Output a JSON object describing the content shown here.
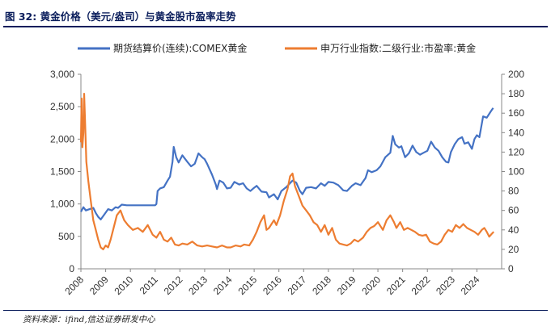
{
  "title": "图 32:  黄金价格（美元/盎司）与黄金股市盈率走势",
  "source": "资料来源：ifind,信达证券研发中心",
  "chart_data": {
    "type": "line",
    "x_ticks": [
      "2008",
      "2009",
      "2010",
      "2011",
      "2012",
      "2013",
      "2014",
      "2015",
      "2016",
      "2017",
      "2018",
      "2019",
      "2020",
      "2021",
      "2022",
      "2023",
      "2024"
    ],
    "x_range": [
      2008.0,
      2025.0
    ],
    "y_left": {
      "min": 0,
      "max": 3000,
      "ticks": [
        "0",
        "500",
        "1,000",
        "1,500",
        "2,000",
        "2,500",
        "3,000"
      ]
    },
    "y_right": {
      "min": 0,
      "max": 200,
      "ticks": [
        "0",
        "20",
        "40",
        "60",
        "80",
        "100",
        "120",
        "140",
        "160",
        "180",
        "200"
      ]
    },
    "series": [
      {
        "name": "期货结算价(连续):COMEX黄金",
        "axis": "left",
        "color": "#4472c4",
        "points": [
          [
            2008.0,
            880
          ],
          [
            2008.1,
            950
          ],
          [
            2008.2,
            900
          ],
          [
            2008.35,
            920
          ],
          [
            2008.5,
            940
          ],
          [
            2008.6,
            860
          ],
          [
            2008.7,
            800
          ],
          [
            2008.8,
            760
          ],
          [
            2008.95,
            840
          ],
          [
            2009.1,
            920
          ],
          [
            2009.25,
            900
          ],
          [
            2009.4,
            950
          ],
          [
            2009.5,
            940
          ],
          [
            2009.65,
            990
          ],
          [
            2009.85,
            980
          ],
          [
            2010.0,
            980
          ],
          [
            2010.25,
            980
          ],
          [
            2010.5,
            980
          ],
          [
            2010.75,
            980
          ],
          [
            2011.0,
            980
          ],
          [
            2011.05,
            1000
          ],
          [
            2011.1,
            1200
          ],
          [
            2011.2,
            1240
          ],
          [
            2011.35,
            1260
          ],
          [
            2011.5,
            1360
          ],
          [
            2011.6,
            1420
          ],
          [
            2011.7,
            1650
          ],
          [
            2011.75,
            1880
          ],
          [
            2011.85,
            1720
          ],
          [
            2011.95,
            1640
          ],
          [
            2012.1,
            1750
          ],
          [
            2012.3,
            1650
          ],
          [
            2012.45,
            1580
          ],
          [
            2012.6,
            1620
          ],
          [
            2012.75,
            1780
          ],
          [
            2012.9,
            1720
          ],
          [
            2013.0,
            1690
          ],
          [
            2013.1,
            1620
          ],
          [
            2013.3,
            1450
          ],
          [
            2013.45,
            1300
          ],
          [
            2013.5,
            1230
          ],
          [
            2013.6,
            1360
          ],
          [
            2013.75,
            1330
          ],
          [
            2013.9,
            1240
          ],
          [
            2014.05,
            1250
          ],
          [
            2014.2,
            1340
          ],
          [
            2014.4,
            1300
          ],
          [
            2014.55,
            1320
          ],
          [
            2014.7,
            1240
          ],
          [
            2014.85,
            1200
          ],
          [
            2015.0,
            1250
          ],
          [
            2015.1,
            1280
          ],
          [
            2015.3,
            1190
          ],
          [
            2015.5,
            1180
          ],
          [
            2015.6,
            1100
          ],
          [
            2015.8,
            1150
          ],
          [
            2015.95,
            1070
          ],
          [
            2016.1,
            1200
          ],
          [
            2016.3,
            1260
          ],
          [
            2016.55,
            1360
          ],
          [
            2016.7,
            1330
          ],
          [
            2016.85,
            1200
          ],
          [
            2016.95,
            1150
          ],
          [
            2017.1,
            1250
          ],
          [
            2017.3,
            1260
          ],
          [
            2017.5,
            1240
          ],
          [
            2017.7,
            1320
          ],
          [
            2017.85,
            1280
          ],
          [
            2018.0,
            1340
          ],
          [
            2018.2,
            1330
          ],
          [
            2018.4,
            1290
          ],
          [
            2018.6,
            1210
          ],
          [
            2018.75,
            1200
          ],
          [
            2018.95,
            1280
          ],
          [
            2019.1,
            1320
          ],
          [
            2019.3,
            1290
          ],
          [
            2019.5,
            1400
          ],
          [
            2019.6,
            1520
          ],
          [
            2019.75,
            1490
          ],
          [
            2019.95,
            1520
          ],
          [
            2020.1,
            1580
          ],
          [
            2020.2,
            1650
          ],
          [
            2020.3,
            1720
          ],
          [
            2020.5,
            1790
          ],
          [
            2020.6,
            2050
          ],
          [
            2020.7,
            1920
          ],
          [
            2020.85,
            1870
          ],
          [
            2020.95,
            1890
          ],
          [
            2021.1,
            1720
          ],
          [
            2021.25,
            1780
          ],
          [
            2021.4,
            1900
          ],
          [
            2021.55,
            1800
          ],
          [
            2021.7,
            1760
          ],
          [
            2021.85,
            1790
          ],
          [
            2022.0,
            1820
          ],
          [
            2022.15,
            1960
          ],
          [
            2022.3,
            1870
          ],
          [
            2022.45,
            1820
          ],
          [
            2022.6,
            1720
          ],
          [
            2022.75,
            1650
          ],
          [
            2022.85,
            1640
          ],
          [
            2022.95,
            1800
          ],
          [
            2023.1,
            1920
          ],
          [
            2023.25,
            2000
          ],
          [
            2023.4,
            2030
          ],
          [
            2023.5,
            1930
          ],
          [
            2023.65,
            1950
          ],
          [
            2023.8,
            1850
          ],
          [
            2023.9,
            2000
          ],
          [
            2024.0,
            2060
          ],
          [
            2024.1,
            2030
          ],
          [
            2024.25,
            2350
          ],
          [
            2024.4,
            2330
          ],
          [
            2024.55,
            2420
          ],
          [
            2024.62,
            2460
          ],
          [
            2024.66,
            2480
          ]
        ]
      },
      {
        "name": "申万行业指数:二级行业:市盈率:黄金",
        "axis": "right",
        "color": "#ed7d31",
        "points": [
          [
            2008.0,
            130
          ],
          [
            2008.03,
            175
          ],
          [
            2008.06,
            125
          ],
          [
            2008.1,
            140
          ],
          [
            2008.13,
            180
          ],
          [
            2008.17,
            150
          ],
          [
            2008.22,
            110
          ],
          [
            2008.3,
            90
          ],
          [
            2008.4,
            70
          ],
          [
            2008.5,
            50
          ],
          [
            2008.6,
            40
          ],
          [
            2008.7,
            30
          ],
          [
            2008.8,
            22
          ],
          [
            2008.9,
            20
          ],
          [
            2009.0,
            24
          ],
          [
            2009.1,
            22
          ],
          [
            2009.2,
            30
          ],
          [
            2009.3,
            40
          ],
          [
            2009.45,
            55
          ],
          [
            2009.6,
            60
          ],
          [
            2009.75,
            50
          ],
          [
            2009.9,
            45
          ],
          [
            2010.1,
            40
          ],
          [
            2010.3,
            42
          ],
          [
            2010.5,
            38
          ],
          [
            2010.7,
            45
          ],
          [
            2010.9,
            35
          ],
          [
            2011.05,
            32
          ],
          [
            2011.2,
            38
          ],
          [
            2011.35,
            30
          ],
          [
            2011.5,
            28
          ],
          [
            2011.65,
            32
          ],
          [
            2011.8,
            25
          ],
          [
            2011.95,
            24
          ],
          [
            2012.1,
            26
          ],
          [
            2012.3,
            25
          ],
          [
            2012.5,
            28
          ],
          [
            2012.7,
            24
          ],
          [
            2012.9,
            23
          ],
          [
            2013.1,
            24
          ],
          [
            2013.3,
            23
          ],
          [
            2013.5,
            22
          ],
          [
            2013.7,
            24
          ],
          [
            2013.9,
            22
          ],
          [
            2014.05,
            22
          ],
          [
            2014.25,
            24
          ],
          [
            2014.45,
            23
          ],
          [
            2014.6,
            25
          ],
          [
            2014.8,
            24
          ],
          [
            2014.95,
            30
          ],
          [
            2015.1,
            38
          ],
          [
            2015.25,
            48
          ],
          [
            2015.4,
            55
          ],
          [
            2015.5,
            40
          ],
          [
            2015.6,
            42
          ],
          [
            2015.8,
            50
          ],
          [
            2015.9,
            45
          ],
          [
            2016.05,
            55
          ],
          [
            2016.2,
            70
          ],
          [
            2016.35,
            82
          ],
          [
            2016.45,
            95
          ],
          [
            2016.55,
            98
          ],
          [
            2016.65,
            85
          ],
          [
            2016.8,
            75
          ],
          [
            2016.95,
            65
          ],
          [
            2017.1,
            60
          ],
          [
            2017.25,
            55
          ],
          [
            2017.4,
            48
          ],
          [
            2017.55,
            45
          ],
          [
            2017.7,
            38
          ],
          [
            2017.85,
            45
          ],
          [
            2018.0,
            35
          ],
          [
            2018.15,
            42
          ],
          [
            2018.3,
            30
          ],
          [
            2018.45,
            26
          ],
          [
            2018.6,
            25
          ],
          [
            2018.75,
            24
          ],
          [
            2018.9,
            26
          ],
          [
            2019.05,
            30
          ],
          [
            2019.2,
            28
          ],
          [
            2019.4,
            32
          ],
          [
            2019.55,
            38
          ],
          [
            2019.7,
            42
          ],
          [
            2019.85,
            44
          ],
          [
            2020.0,
            48
          ],
          [
            2020.2,
            40
          ],
          [
            2020.35,
            50
          ],
          [
            2020.5,
            55
          ],
          [
            2020.65,
            48
          ],
          [
            2020.75,
            42
          ],
          [
            2020.9,
            48
          ],
          [
            2021.05,
            40
          ],
          [
            2021.2,
            42
          ],
          [
            2021.35,
            40
          ],
          [
            2021.5,
            38
          ],
          [
            2021.65,
            35
          ],
          [
            2021.8,
            34
          ],
          [
            2021.95,
            35
          ],
          [
            2022.1,
            28
          ],
          [
            2022.25,
            26
          ],
          [
            2022.4,
            25
          ],
          [
            2022.55,
            28
          ],
          [
            2022.7,
            35
          ],
          [
            2022.85,
            40
          ],
          [
            2023.0,
            38
          ],
          [
            2023.15,
            45
          ],
          [
            2023.3,
            42
          ],
          [
            2023.45,
            46
          ],
          [
            2023.6,
            42
          ],
          [
            2023.75,
            40
          ],
          [
            2023.9,
            38
          ],
          [
            2024.05,
            35
          ],
          [
            2024.2,
            40
          ],
          [
            2024.3,
            42
          ],
          [
            2024.4,
            38
          ],
          [
            2024.5,
            33
          ],
          [
            2024.6,
            36
          ],
          [
            2024.68,
            38
          ]
        ]
      }
    ]
  }
}
